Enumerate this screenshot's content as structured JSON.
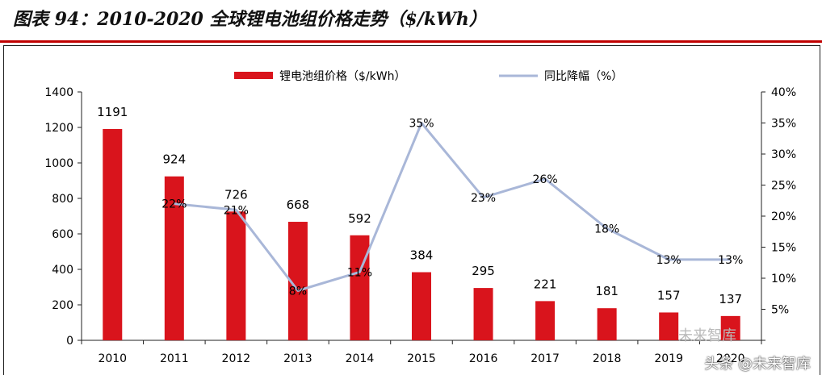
{
  "title": "图表 94：2010-2020 全球锂电池组价格走势（$/kWh）",
  "watermark_top": "未来智库",
  "watermark": "头条 @未来智库",
  "colors": {
    "bar": "#d9141c",
    "line": "#a9b7d8",
    "rule": "#c00000"
  },
  "chart_data": {
    "type": "bar+line",
    "categories": [
      "2010",
      "2011",
      "2012",
      "2013",
      "2014",
      "2015",
      "2016",
      "2017",
      "2018",
      "2019",
      "2020"
    ],
    "series": [
      {
        "name": "锂电池组价格（$/kWh）",
        "type": "bar",
        "axis": "left",
        "values": [
          1191,
          924,
          726,
          668,
          592,
          384,
          295,
          221,
          181,
          157,
          137
        ],
        "labels": [
          "1191",
          "924",
          "726",
          "668",
          "592",
          "384",
          "295",
          "221",
          "181",
          "157",
          "137"
        ]
      },
      {
        "name": "同比降幅（%）",
        "type": "line",
        "axis": "right",
        "values": [
          null,
          22,
          21,
          8,
          11,
          35,
          23,
          26,
          18,
          13,
          13
        ],
        "labels": [
          "",
          "22%",
          "21%",
          "8%",
          "11%",
          "35%",
          "23%",
          "26%",
          "18%",
          "13%",
          "13%"
        ]
      }
    ],
    "left_axis": {
      "range": [
        0,
        1400
      ],
      "ticks": [
        "0",
        "200",
        "400",
        "600",
        "800",
        "1000",
        "1200",
        "1400"
      ]
    },
    "right_axis": {
      "range": [
        0,
        40
      ],
      "ticks": [
        "",
        "5%",
        "10%",
        "15%",
        "20%",
        "25%",
        "30%",
        "35%",
        "40%"
      ]
    },
    "x_tick_labels": [
      "2010",
      "2011",
      "2012",
      "2013",
      "2014",
      "2015",
      "2016",
      "2017",
      "2018",
      "2019",
      "2020"
    ],
    "legend_position": "top"
  }
}
